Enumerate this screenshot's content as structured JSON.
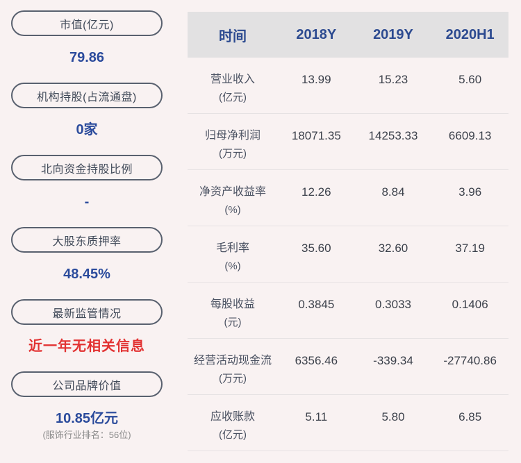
{
  "colors": {
    "page_bg": "#f9f2f2",
    "pill_border": "#59616f",
    "accent_blue": "#2b4b9c",
    "alert_red": "#e23333",
    "sub_gray": "#8b8b8b",
    "header_bg": "#e2e1e2",
    "divider": "#e6e2e3"
  },
  "sidebar": {
    "items": [
      {
        "label": "市值(亿元)",
        "value": "79.86",
        "value_color": "blue"
      },
      {
        "label": "机构持股(占流通盘)",
        "value": "0家",
        "value_color": "blue"
      },
      {
        "label": "北向资金持股比例",
        "value": "-",
        "value_color": "blue"
      },
      {
        "label": "大股东质押率",
        "value": "48.45%",
        "value_color": "blue"
      },
      {
        "label": "最新监管情况",
        "value": "近一年无相关信息",
        "value_color": "red"
      },
      {
        "label": "公司品牌价值",
        "value": "10.85亿元",
        "value_color": "blue",
        "subvalue": "(服饰行业排名：56位)"
      }
    ]
  },
  "table": {
    "header": [
      "时间",
      "2018Y",
      "2019Y",
      "2020H1"
    ],
    "rows": [
      {
        "label": "营业收入",
        "unit": "(亿元)",
        "values": [
          "13.99",
          "15.23",
          "5.60"
        ]
      },
      {
        "label": "归母净利润",
        "unit": "(万元)",
        "values": [
          "18071.35",
          "14253.33",
          "6609.13"
        ]
      },
      {
        "label": "净资产收益率",
        "unit": "(%)",
        "values": [
          "12.26",
          "8.84",
          "3.96"
        ]
      },
      {
        "label": "毛利率",
        "unit": "(%)",
        "values": [
          "35.60",
          "32.60",
          "37.19"
        ]
      },
      {
        "label": "每股收益",
        "unit": "(元)",
        "values": [
          "0.3845",
          "0.3033",
          "0.1406"
        ]
      },
      {
        "label": "经营活动现金流",
        "unit": "(万元)",
        "values": [
          "6356.46",
          "-339.34",
          "-27740.86"
        ]
      },
      {
        "label": "应收账款",
        "unit": "(亿元)",
        "values": [
          "5.11",
          "5.80",
          "6.85"
        ]
      }
    ]
  }
}
